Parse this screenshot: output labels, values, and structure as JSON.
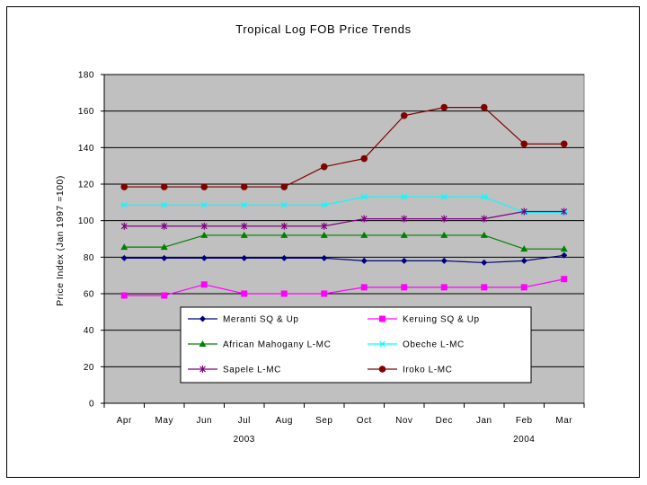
{
  "chart_data": {
    "type": "line",
    "title": "Tropical Log FOB Price Trends",
    "xlabel": "",
    "ylabel": "Price Index (Jan 1997 =100)",
    "categories": [
      "Apr",
      "May",
      "Jun",
      "Jul",
      "Aug",
      "Sep",
      "Oct",
      "Nov",
      "Dec",
      "Jan",
      "Feb",
      "Mar"
    ],
    "year_labels": [
      {
        "label": "2003",
        "under": "Jul"
      },
      {
        "label": "2004",
        "under": "Feb"
      }
    ],
    "ylim": [
      0,
      180
    ],
    "yticks": [
      0,
      20,
      40,
      60,
      80,
      100,
      120,
      140,
      160,
      180
    ],
    "grid": true,
    "plot_background": "#c0c0c0",
    "legend_placement": "inside-bottom-center",
    "series": [
      {
        "name": "Meranti SQ & Up",
        "color": "#000080",
        "marker": "diamond",
        "values": [
          79.5,
          79.5,
          79.5,
          79.5,
          79.5,
          79.5,
          78,
          78,
          78,
          77,
          78,
          81
        ]
      },
      {
        "name": "Keruing SQ & Up",
        "color": "#ff00ff",
        "marker": "square",
        "values": [
          59,
          59,
          65,
          60,
          60,
          60,
          63.5,
          63.5,
          63.5,
          63.5,
          63.5,
          68
        ]
      },
      {
        "name": "African Mahogany L-MC",
        "color": "#008000",
        "marker": "triangle",
        "values": [
          85.5,
          85.5,
          92,
          92,
          92,
          92,
          92,
          92,
          92,
          92,
          84.5,
          84.5
        ]
      },
      {
        "name": "Obeche L-MC",
        "color": "#00ffff",
        "marker": "star",
        "values": [
          108.5,
          108.5,
          108.5,
          108.5,
          108.5,
          108.5,
          113,
          113,
          113,
          113,
          104.5,
          104.5
        ]
      },
      {
        "name": "Sapele L-MC",
        "color": "#800080",
        "marker": "asterisk",
        "values": [
          97,
          97,
          97,
          97,
          97,
          97,
          101,
          101,
          101,
          101,
          105,
          105
        ]
      },
      {
        "name": "Iroko L-MC",
        "color": "#800000",
        "marker": "circle",
        "values": [
          118.5,
          118.5,
          118.5,
          118.5,
          118.5,
          129.5,
          134,
          157.5,
          162,
          162,
          142,
          142
        ]
      }
    ]
  }
}
